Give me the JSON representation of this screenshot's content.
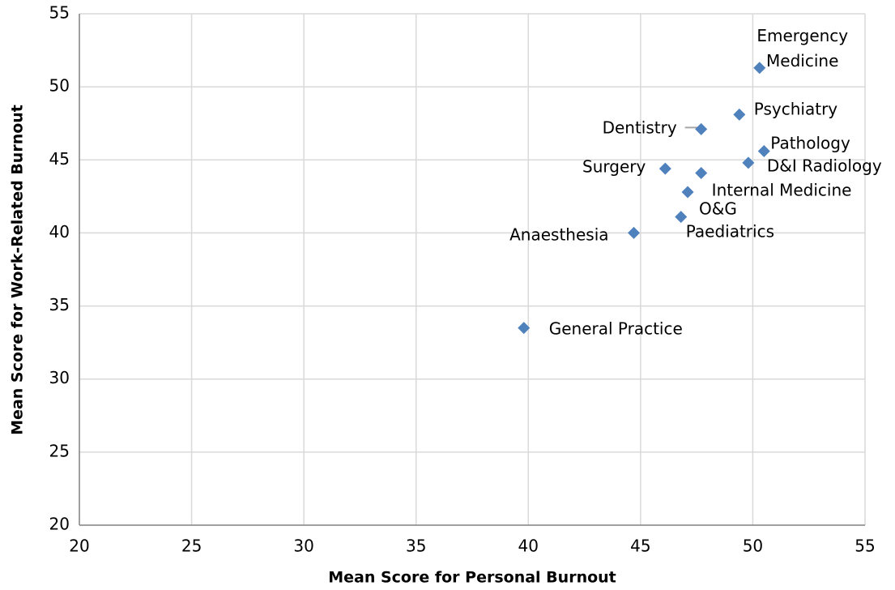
{
  "chart_data": {
    "type": "scatter",
    "x_label": "Mean Score for Personal Burnout",
    "y_label": "Mean Score for Work-Related Burnout",
    "categories": [
      "Emergency Medicine",
      "Psychiatry",
      "Dentistry",
      "Pathology",
      "D&I Radiology",
      "Surgery",
      "Internal Medicine",
      "O&G",
      "Paediatrics",
      "Anaesthesia",
      "General Practice"
    ],
    "x": [
      50.3,
      49.4,
      47.7,
      50.5,
      49.8,
      46.1,
      47.7,
      47.1,
      46.8,
      44.7,
      39.8
    ],
    "values": [
      51.3,
      48.1,
      47.1,
      45.6,
      44.8,
      44.4,
      44.1,
      42.8,
      41.1,
      40.0,
      33.5
    ],
    "color": "#4f81bd",
    "xlim": [
      20,
      55
    ],
    "xticks": [
      20,
      25,
      30,
      35,
      40,
      45,
      50,
      55
    ],
    "ylim": [
      20,
      55
    ],
    "yticks": [
      20,
      25,
      30,
      35,
      40,
      45,
      50,
      55
    ],
    "grid": true
  }
}
